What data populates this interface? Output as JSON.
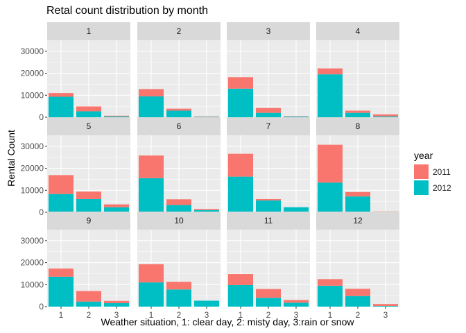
{
  "chart_data": {
    "type": "bar",
    "title": "Retal count distribution by month",
    "xlabel": "Weather situation, 1: clear day, 2: misty day, 3:rain or snow",
    "ylabel": "Rental Count",
    "categories": [
      "1",
      "2",
      "3"
    ],
    "ylim": [
      0,
      35000
    ],
    "yticks": [
      0,
      10000,
      20000,
      30000
    ],
    "grid": true,
    "legend": {
      "title": "year",
      "position": "right",
      "entries": [
        "2011",
        "2012"
      ]
    },
    "colors": {
      "2011": "#F8766D",
      "2012": "#00BFC4",
      "panel_bg": "#EBEBEB",
      "strip_bg": "#D9D9D9"
    },
    "stacked": true,
    "facets": [
      {
        "label": "1",
        "series": [
          {
            "name": "2011",
            "values": [
              1700,
              2200,
              300
            ]
          },
          {
            "name": "2012",
            "values": [
              9300,
              2700,
              400
            ]
          }
        ]
      },
      {
        "label": "2",
        "series": [
          {
            "name": "2011",
            "values": [
              3300,
              900,
              150
            ]
          },
          {
            "name": "2012",
            "values": [
              9500,
              3000,
              200
            ]
          }
        ]
      },
      {
        "label": "3",
        "series": [
          {
            "name": "2011",
            "values": [
              5200,
              2200,
              150
            ]
          },
          {
            "name": "2012",
            "values": [
              13000,
              2000,
              300
            ]
          }
        ]
      },
      {
        "label": "4",
        "series": [
          {
            "name": "2011",
            "values": [
              2700,
              1000,
              900
            ]
          },
          {
            "name": "2012",
            "values": [
              19500,
              2000,
              400
            ]
          }
        ]
      },
      {
        "label": "5",
        "series": [
          {
            "name": "2011",
            "values": [
              8600,
              3400,
              1300
            ]
          },
          {
            "name": "2012",
            "values": [
              8300,
              6000,
              2300
            ]
          }
        ]
      },
      {
        "label": "6",
        "series": [
          {
            "name": "2011",
            "values": [
              10300,
              2600,
              500
            ]
          },
          {
            "name": "2012",
            "values": [
              15500,
              3300,
              1000
            ]
          }
        ]
      },
      {
        "label": "7",
        "series": [
          {
            "name": "2011",
            "values": [
              10400,
              600,
              0
            ]
          },
          {
            "name": "2012",
            "values": [
              16200,
              5400,
              2300
            ]
          }
        ]
      },
      {
        "label": "8",
        "series": [
          {
            "name": "2011",
            "values": [
              17200,
              2000,
              100
            ]
          },
          {
            "name": "2012",
            "values": [
              13500,
              7200,
              300
            ]
          }
        ]
      },
      {
        "label": "9",
        "series": [
          {
            "name": "2011",
            "values": [
              3700,
              4800,
              1000
            ]
          },
          {
            "name": "2012",
            "values": [
              13600,
              2300,
              1600
            ]
          }
        ]
      },
      {
        "label": "10",
        "series": [
          {
            "name": "2011",
            "values": [
              8300,
              3500,
              0
            ]
          },
          {
            "name": "2012",
            "values": [
              11000,
              7800,
              2700
            ]
          }
        ]
      },
      {
        "label": "11",
        "series": [
          {
            "name": "2011",
            "values": [
              5000,
              4000,
              1200
            ]
          },
          {
            "name": "2012",
            "values": [
              9800,
              4000,
              1800
            ]
          }
        ]
      },
      {
        "label": "12",
        "series": [
          {
            "name": "2011",
            "values": [
              3000,
              3300,
              900
            ]
          },
          {
            "name": "2012",
            "values": [
              9500,
              4800,
              300
            ]
          }
        ]
      }
    ]
  }
}
